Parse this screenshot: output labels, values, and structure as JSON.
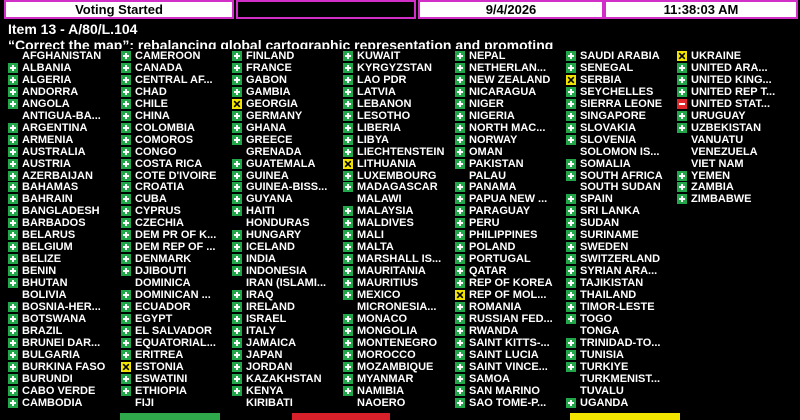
{
  "header": {
    "status": "Voting Started",
    "date": "9/4/2026",
    "time": "11:38:03 AM"
  },
  "item": "Item 13 - A/80/L.104",
  "title": "“Correct the map”: rebalancing global cartographic representation and promoting",
  "columns": [
    [
      {
        "name": "AFGHANISTAN"
      },
      {
        "name": "ALBANIA",
        "vote": "yes"
      },
      {
        "name": "ALGERIA",
        "vote": "yes"
      },
      {
        "name": "ANDORRA",
        "vote": "yes"
      },
      {
        "name": "ANGOLA",
        "vote": "yes"
      },
      {
        "name": "ANTIGUA-BA..."
      },
      {
        "name": "ARGENTINA",
        "vote": "yes"
      },
      {
        "name": "ARMENIA",
        "vote": "yes"
      },
      {
        "name": "AUSTRALIA",
        "vote": "yes"
      },
      {
        "name": "AUSTRIA",
        "vote": "yes"
      },
      {
        "name": "AZERBAIJAN",
        "vote": "yes"
      },
      {
        "name": "BAHAMAS",
        "vote": "yes"
      },
      {
        "name": "BAHRAIN",
        "vote": "yes"
      },
      {
        "name": "BANGLADESH",
        "vote": "yes"
      },
      {
        "name": "BARBADOS",
        "vote": "yes"
      },
      {
        "name": "BELARUS",
        "vote": "yes"
      },
      {
        "name": "BELGIUM",
        "vote": "yes"
      },
      {
        "name": "BELIZE",
        "vote": "yes"
      },
      {
        "name": "BENIN",
        "vote": "yes"
      },
      {
        "name": "BHUTAN",
        "vote": "yes"
      },
      {
        "name": "BOLIVIA"
      },
      {
        "name": "BOSNIA-HER...",
        "vote": "yes"
      },
      {
        "name": "BOTSWANA",
        "vote": "yes"
      },
      {
        "name": "BRAZIL",
        "vote": "yes"
      },
      {
        "name": "BRUNEI DAR...",
        "vote": "yes"
      },
      {
        "name": "BULGARIA",
        "vote": "yes"
      },
      {
        "name": "BURKINA FASO",
        "vote": "yes"
      },
      {
        "name": "BURUNDI",
        "vote": "yes"
      },
      {
        "name": "CABO VERDE",
        "vote": "yes"
      },
      {
        "name": "CAMBODIA",
        "vote": "yes"
      }
    ],
    [
      {
        "name": "CAMEROON",
        "vote": "yes"
      },
      {
        "name": "CANADA",
        "vote": "yes"
      },
      {
        "name": "CENTRAL AF...",
        "vote": "yes"
      },
      {
        "name": "CHAD",
        "vote": "yes"
      },
      {
        "name": "CHILE",
        "vote": "yes"
      },
      {
        "name": "CHINA",
        "vote": "yes"
      },
      {
        "name": "COLOMBIA",
        "vote": "yes"
      },
      {
        "name": "COMOROS",
        "vote": "yes"
      },
      {
        "name": "CONGO",
        "vote": "yes"
      },
      {
        "name": "COSTA RICA",
        "vote": "yes"
      },
      {
        "name": "COTE D'IVOIRE",
        "vote": "yes"
      },
      {
        "name": "CROATIA",
        "vote": "yes"
      },
      {
        "name": "CUBA",
        "vote": "yes"
      },
      {
        "name": "CYPRUS",
        "vote": "yes"
      },
      {
        "name": "CZECHIA",
        "vote": "yes"
      },
      {
        "name": "DEM PR OF K...",
        "vote": "yes"
      },
      {
        "name": "DEM REP OF ...",
        "vote": "yes"
      },
      {
        "name": "DENMARK",
        "vote": "yes"
      },
      {
        "name": "DJIBOUTI",
        "vote": "yes"
      },
      {
        "name": "DOMINICA"
      },
      {
        "name": "DOMINICAN ...",
        "vote": "yes"
      },
      {
        "name": "ECUADOR",
        "vote": "yes"
      },
      {
        "name": "EGYPT",
        "vote": "yes"
      },
      {
        "name": "EL SALVADOR",
        "vote": "yes"
      },
      {
        "name": "EQUATORIAL...",
        "vote": "yes"
      },
      {
        "name": "ERITREA",
        "vote": "yes"
      },
      {
        "name": "ESTONIA",
        "vote": "abstain"
      },
      {
        "name": "ESWATINI",
        "vote": "yes"
      },
      {
        "name": "ETHIOPIA",
        "vote": "yes"
      },
      {
        "name": "FIJI"
      }
    ],
    [
      {
        "name": "FINLAND",
        "vote": "yes"
      },
      {
        "name": "FRANCE",
        "vote": "yes"
      },
      {
        "name": "GABON",
        "vote": "yes"
      },
      {
        "name": "GAMBIA",
        "vote": "yes"
      },
      {
        "name": "GEORGIA",
        "vote": "abstain"
      },
      {
        "name": "GERMANY",
        "vote": "yes"
      },
      {
        "name": "GHANA",
        "vote": "yes"
      },
      {
        "name": "GREECE",
        "vote": "yes"
      },
      {
        "name": "GRENADA"
      },
      {
        "name": "GUATEMALA",
        "vote": "yes"
      },
      {
        "name": "GUINEA",
        "vote": "yes"
      },
      {
        "name": "GUINEA-BISS...",
        "vote": "yes"
      },
      {
        "name": "GUYANA",
        "vote": "yes"
      },
      {
        "name": "HAITI",
        "vote": "yes"
      },
      {
        "name": "HONDURAS"
      },
      {
        "name": "HUNGARY",
        "vote": "yes"
      },
      {
        "name": "ICELAND",
        "vote": "yes"
      },
      {
        "name": "INDIA",
        "vote": "yes"
      },
      {
        "name": "INDONESIA",
        "vote": "yes"
      },
      {
        "name": "IRAN (ISLAMI..."
      },
      {
        "name": "IRAQ",
        "vote": "yes"
      },
      {
        "name": "IRELAND",
        "vote": "yes"
      },
      {
        "name": "ISRAEL",
        "vote": "yes"
      },
      {
        "name": "ITALY",
        "vote": "yes"
      },
      {
        "name": "JAMAICA",
        "vote": "yes"
      },
      {
        "name": "JAPAN",
        "vote": "yes"
      },
      {
        "name": "JORDAN",
        "vote": "yes"
      },
      {
        "name": "KAZAKHSTAN",
        "vote": "yes"
      },
      {
        "name": "KENYA",
        "vote": "yes"
      },
      {
        "name": "KIRIBATI"
      }
    ],
    [
      {
        "name": "KUWAIT",
        "vote": "yes"
      },
      {
        "name": "KYRGYZSTAN",
        "vote": "yes"
      },
      {
        "name": "LAO PDR",
        "vote": "yes"
      },
      {
        "name": "LATVIA",
        "vote": "yes"
      },
      {
        "name": "LEBANON",
        "vote": "yes"
      },
      {
        "name": "LESOTHO",
        "vote": "yes"
      },
      {
        "name": "LIBERIA",
        "vote": "yes"
      },
      {
        "name": "LIBYA",
        "vote": "yes"
      },
      {
        "name": "LIECHTENSTEIN",
        "vote": "yes"
      },
      {
        "name": "LITHUANIA",
        "vote": "abstain"
      },
      {
        "name": "LUXEMBOURG",
        "vote": "yes"
      },
      {
        "name": "MADAGASCAR",
        "vote": "yes"
      },
      {
        "name": "MALAWI"
      },
      {
        "name": "MALAYSIA",
        "vote": "yes"
      },
      {
        "name": "MALDIVES",
        "vote": "yes"
      },
      {
        "name": "MALI",
        "vote": "yes"
      },
      {
        "name": "MALTA",
        "vote": "yes"
      },
      {
        "name": "MARSHALL IS...",
        "vote": "yes"
      },
      {
        "name": "MAURITANIA",
        "vote": "yes"
      },
      {
        "name": "MAURITIUS",
        "vote": "yes"
      },
      {
        "name": "MEXICO",
        "vote": "yes"
      },
      {
        "name": "MICRONESIA..."
      },
      {
        "name": "MONACO",
        "vote": "yes"
      },
      {
        "name": "MONGOLIA",
        "vote": "yes"
      },
      {
        "name": "MONTENEGRO",
        "vote": "yes"
      },
      {
        "name": "MOROCCO",
        "vote": "yes"
      },
      {
        "name": "MOZAMBIQUE",
        "vote": "yes"
      },
      {
        "name": "MYANMAR",
        "vote": "yes"
      },
      {
        "name": "NAMIBIA",
        "vote": "yes"
      },
      {
        "name": "NAOERO"
      }
    ],
    [
      {
        "name": "NEPAL",
        "vote": "yes"
      },
      {
        "name": "NETHERLAN...",
        "vote": "yes"
      },
      {
        "name": "NEW ZEALAND",
        "vote": "yes"
      },
      {
        "name": "NICARAGUA",
        "vote": "yes"
      },
      {
        "name": "NIGER",
        "vote": "yes"
      },
      {
        "name": "NIGERIA",
        "vote": "yes"
      },
      {
        "name": "NORTH MAC...",
        "vote": "yes"
      },
      {
        "name": "NORWAY",
        "vote": "yes"
      },
      {
        "name": "OMAN",
        "vote": "yes"
      },
      {
        "name": "PAKISTAN",
        "vote": "yes"
      },
      {
        "name": "PALAU"
      },
      {
        "name": "PANAMA",
        "vote": "yes"
      },
      {
        "name": "PAPUA NEW ...",
        "vote": "yes"
      },
      {
        "name": "PARAGUAY",
        "vote": "yes"
      },
      {
        "name": "PERU",
        "vote": "yes"
      },
      {
        "name": "PHILIPPINES",
        "vote": "yes"
      },
      {
        "name": "POLAND",
        "vote": "yes"
      },
      {
        "name": "PORTUGAL",
        "vote": "yes"
      },
      {
        "name": "QATAR",
        "vote": "yes"
      },
      {
        "name": "REP OF KOREA",
        "vote": "yes"
      },
      {
        "name": "REP OF MOL...",
        "vote": "abstain"
      },
      {
        "name": "ROMANIA",
        "vote": "yes"
      },
      {
        "name": "RUSSIAN FED...",
        "vote": "yes"
      },
      {
        "name": "RWANDA",
        "vote": "yes"
      },
      {
        "name": "SAINT KITTS-...",
        "vote": "yes"
      },
      {
        "name": "SAINT LUCIA",
        "vote": "yes"
      },
      {
        "name": "SAINT VINCE...",
        "vote": "yes"
      },
      {
        "name": "SAMOA",
        "vote": "yes"
      },
      {
        "name": "SAN MARINO",
        "vote": "yes"
      },
      {
        "name": "SAO TOME-P...",
        "vote": "yes"
      }
    ],
    [
      {
        "name": "SAUDI ARABIA",
        "vote": "yes"
      },
      {
        "name": "SENEGAL",
        "vote": "yes"
      },
      {
        "name": "SERBIA",
        "vote": "abstain"
      },
      {
        "name": "SEYCHELLES",
        "vote": "yes"
      },
      {
        "name": "SIERRA LEONE",
        "vote": "yes"
      },
      {
        "name": "SINGAPORE",
        "vote": "yes"
      },
      {
        "name": "SLOVAKIA",
        "vote": "yes"
      },
      {
        "name": "SLOVENIA",
        "vote": "yes"
      },
      {
        "name": "SOLOMON IS..."
      },
      {
        "name": "SOMALIA",
        "vote": "yes"
      },
      {
        "name": "SOUTH AFRICA",
        "vote": "yes"
      },
      {
        "name": "SOUTH SUDAN"
      },
      {
        "name": "SPAIN",
        "vote": "yes"
      },
      {
        "name": "SRI LANKA",
        "vote": "yes"
      },
      {
        "name": "SUDAN",
        "vote": "yes"
      },
      {
        "name": "SURINAME",
        "vote": "yes"
      },
      {
        "name": "SWEDEN",
        "vote": "yes"
      },
      {
        "name": "SWITZERLAND",
        "vote": "yes"
      },
      {
        "name": "SYRIAN ARA...",
        "vote": "yes"
      },
      {
        "name": "TAJIKISTAN",
        "vote": "yes"
      },
      {
        "name": "THAILAND",
        "vote": "yes"
      },
      {
        "name": "TIMOR-LESTE",
        "vote": "yes"
      },
      {
        "name": "TOGO",
        "vote": "yes"
      },
      {
        "name": "TONGA"
      },
      {
        "name": "TRINIDAD-TO...",
        "vote": "yes"
      },
      {
        "name": "TUNISIA",
        "vote": "yes"
      },
      {
        "name": "TURKIYE",
        "vote": "yes"
      },
      {
        "name": "TURKMENIST..."
      },
      {
        "name": "TUVALU"
      },
      {
        "name": "UGANDA",
        "vote": "yes"
      }
    ],
    [
      {
        "name": "UKRAINE",
        "vote": "abstain"
      },
      {
        "name": "UNITED ARA...",
        "vote": "yes"
      },
      {
        "name": "UNITED KING...",
        "vote": "yes"
      },
      {
        "name": "UNITED REP T...",
        "vote": "yes"
      },
      {
        "name": "UNITED STAT...",
        "vote": "no"
      },
      {
        "name": "URUGUAY",
        "vote": "yes"
      },
      {
        "name": "UZBEKISTAN",
        "vote": "yes"
      },
      {
        "name": "VANUATU"
      },
      {
        "name": "VENEZUELA"
      },
      {
        "name": "VIET NAM"
      },
      {
        "name": "YEMEN",
        "vote": "yes"
      },
      {
        "name": "ZAMBIA",
        "vote": "yes"
      },
      {
        "name": "ZIMBABWE",
        "vote": "yes"
      }
    ]
  ]
}
